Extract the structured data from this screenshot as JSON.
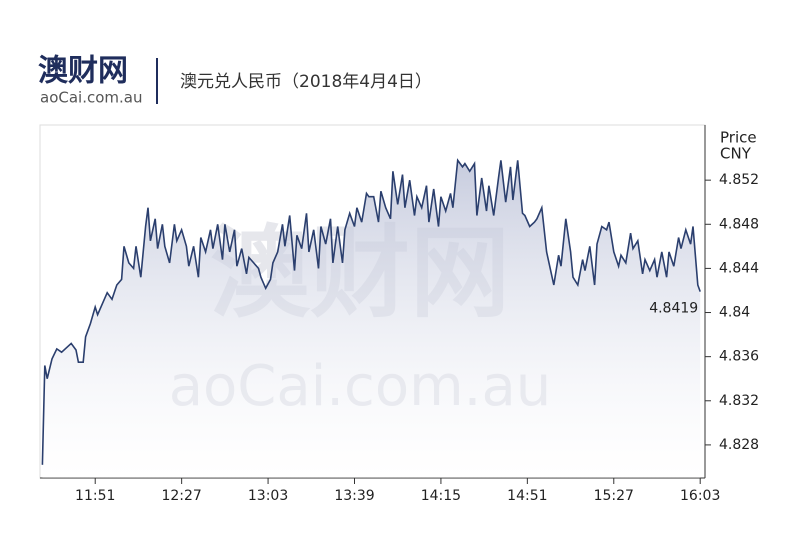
{
  "header": {
    "logo": "澳财网",
    "logo_sub": "aoCai.com.au"
  },
  "chart_data": {
    "type": "area-line",
    "title": "澳元兑人民币（2018年4月4日）",
    "ylabel": [
      "Price",
      "CNY"
    ],
    "x": [
      "11:29",
      "11:30",
      "11:31",
      "11:33",
      "11:35",
      "11:37",
      "11:39",
      "11:41",
      "11:43",
      "11:44",
      "11:46",
      "11:47",
      "11:49",
      "11:51",
      "11:52",
      "11:54",
      "11:56",
      "11:58",
      "12:00",
      "12:02",
      "12:03",
      "12:05",
      "12:07",
      "12:08",
      "12:10",
      "12:12",
      "12:13",
      "12:14",
      "12:16",
      "12:17",
      "12:19",
      "12:20",
      "12:22",
      "12:24",
      "12:25",
      "12:27",
      "12:29",
      "12:30",
      "12:32",
      "12:34",
      "12:35",
      "12:37",
      "12:39",
      "12:40",
      "12:42",
      "12:44",
      "12:45",
      "12:47",
      "12:49",
      "12:50",
      "12:52",
      "12:54",
      "12:55",
      "12:57",
      "12:59",
      "13:00",
      "13:02",
      "13:04",
      "13:05",
      "13:07",
      "13:09",
      "13:10",
      "13:12",
      "13:14",
      "13:15",
      "13:17",
      "13:19",
      "13:20",
      "13:22",
      "13:24",
      "13:25",
      "13:27",
      "13:29",
      "13:30",
      "13:32",
      "13:34",
      "13:35",
      "13:37",
      "13:39",
      "13:40",
      "13:42",
      "13:44",
      "13:45",
      "13:47",
      "13:49",
      "13:50",
      "13:52",
      "13:54",
      "13:55",
      "13:57",
      "13:59",
      "14:00",
      "14:02",
      "14:04",
      "14:05",
      "14:07",
      "14:09",
      "14:10",
      "14:12",
      "14:14",
      "14:15",
      "14:17",
      "14:19",
      "14:20",
      "14:22",
      "14:24",
      "14:25",
      "14:27",
      "14:29",
      "14:30",
      "14:32",
      "14:34",
      "14:35",
      "14:37",
      "14:39",
      "14:40",
      "14:42",
      "14:44",
      "14:45",
      "14:47",
      "14:49",
      "14:50",
      "14:52",
      "14:54",
      "14:55",
      "14:57",
      "14:59",
      "15:00",
      "15:02",
      "15:04",
      "15:05",
      "15:07",
      "15:09",
      "15:10",
      "15:12",
      "15:14",
      "15:15",
      "15:17",
      "15:19",
      "15:20",
      "15:22",
      "15:24",
      "15:25",
      "15:27",
      "15:29",
      "15:30",
      "15:32",
      "15:34",
      "15:35",
      "15:37",
      "15:39",
      "15:40",
      "15:42",
      "15:44",
      "15:45",
      "15:47",
      "15:49",
      "15:50",
      "15:52",
      "15:54",
      "15:55",
      "15:57",
      "15:59",
      "16:00",
      "16:02",
      "16:03"
    ],
    "series": [
      {
        "color": "#2b3f6e",
        "values": [
          4.8262,
          4.8352,
          4.834,
          4.8358,
          4.8367,
          4.8364,
          4.8368,
          4.8372,
          4.8366,
          4.8355,
          4.8355,
          4.8378,
          4.839,
          4.8405,
          4.8398,
          4.8408,
          4.8418,
          4.8412,
          4.8425,
          4.843,
          4.846,
          4.8445,
          4.844,
          4.846,
          4.8432,
          4.8478,
          4.8495,
          4.8465,
          4.8485,
          4.8458,
          4.848,
          4.846,
          4.8445,
          4.848,
          4.8465,
          4.8475,
          4.846,
          4.8442,
          4.846,
          4.8432,
          4.8468,
          4.8455,
          4.8475,
          4.8458,
          4.848,
          4.8448,
          4.848,
          4.8455,
          4.8475,
          4.8442,
          4.8458,
          4.8435,
          4.845,
          4.8445,
          4.844,
          4.8432,
          4.8422,
          4.843,
          4.8445,
          4.8455,
          4.848,
          4.846,
          4.8488,
          4.8438,
          4.847,
          4.8458,
          4.849,
          4.8455,
          4.8475,
          4.844,
          4.8478,
          4.8462,
          4.8485,
          4.8445,
          4.8478,
          4.8445,
          4.8475,
          4.849,
          4.8478,
          4.8495,
          4.8482,
          4.8508,
          4.8505,
          4.8505,
          4.8482,
          4.851,
          4.8495,
          4.8485,
          4.8528,
          4.8498,
          4.8525,
          4.8495,
          4.852,
          4.8488,
          4.8505,
          4.8495,
          4.8515,
          4.8482,
          4.8512,
          4.8478,
          4.8505,
          4.8492,
          4.8508,
          4.8495,
          4.8538,
          4.8532,
          4.8535,
          4.8528,
          4.8535,
          4.8488,
          4.8522,
          4.8492,
          4.8515,
          4.8488,
          4.8522,
          4.8538,
          4.85,
          4.8532,
          4.8502,
          4.8538,
          4.849,
          4.8488,
          4.8478,
          4.8482,
          4.8485,
          4.8495,
          4.8455,
          4.8445,
          4.8425,
          4.8452,
          4.8442,
          4.8485,
          4.8455,
          4.8432,
          4.8425,
          4.8448,
          4.8438,
          4.846,
          4.8425,
          4.8462,
          4.8478,
          4.8475,
          4.8482,
          4.8455,
          4.8442,
          4.8452,
          4.8445,
          4.8472,
          4.8458,
          4.8465,
          4.8435,
          4.8448,
          4.8438,
          4.8448,
          4.8432,
          4.8455,
          4.8432,
          4.8455,
          4.8442,
          4.8468,
          4.8458,
          4.8475,
          4.8462,
          4.8478,
          4.8425,
          4.8419
        ]
      }
    ],
    "xlim": [
      "11:28",
      "16:05"
    ],
    "xticks": [
      "11:51",
      "12:27",
      "13:03",
      "13:39",
      "14:15",
      "14:51",
      "15:27",
      "16:03"
    ],
    "ylim": [
      4.825,
      4.857
    ],
    "yticks": [
      4.828,
      4.832,
      4.836,
      4.84,
      4.844,
      4.848,
      4.852
    ]
  }
}
